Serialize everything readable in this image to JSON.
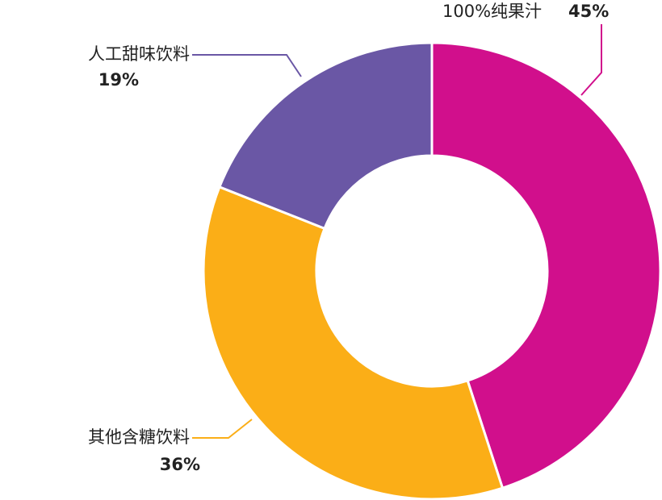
{
  "chart_data": {
    "type": "donut",
    "categories": [
      "100%纯果汁",
      "其他含糖饮料",
      "人工甜味饮料"
    ],
    "values": [
      45,
      36,
      19
    ],
    "value_labels": [
      "45%",
      "36%",
      "19%"
    ],
    "colors": [
      "#d10f8c",
      "#fbae17",
      "#6a57a5"
    ]
  }
}
